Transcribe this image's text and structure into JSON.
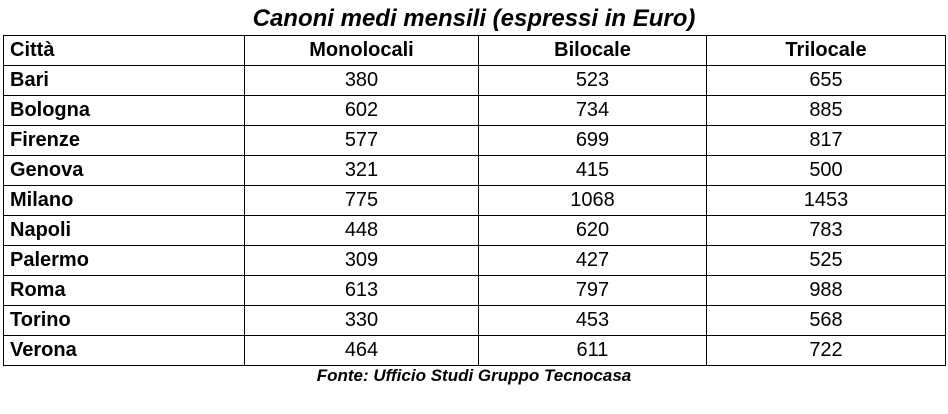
{
  "chart_data": {
    "type": "table",
    "title": "Canoni medi mensili (espressi in Euro)",
    "columns": [
      "Città",
      "Monolocali",
      "Bilocale",
      "Trilocale"
    ],
    "rows": [
      {
        "city": "Bari",
        "values": [
          380,
          523,
          655
        ]
      },
      {
        "city": "Bologna",
        "values": [
          602,
          734,
          885
        ]
      },
      {
        "city": "Firenze",
        "values": [
          577,
          699,
          817
        ]
      },
      {
        "city": "Genova",
        "values": [
          321,
          415,
          500
        ]
      },
      {
        "city": "Milano",
        "values": [
          775,
          1068,
          1453
        ]
      },
      {
        "city": "Napoli",
        "values": [
          448,
          620,
          783
        ]
      },
      {
        "city": "Palermo",
        "values": [
          309,
          427,
          525
        ]
      },
      {
        "city": "Roma",
        "values": [
          613,
          797,
          988
        ]
      },
      {
        "city": "Torino",
        "values": [
          330,
          453,
          568
        ]
      },
      {
        "city": "Verona",
        "values": [
          464,
          611,
          722
        ]
      }
    ],
    "source": "Fonte: Ufficio Studi Gruppo Tecnocasa"
  }
}
